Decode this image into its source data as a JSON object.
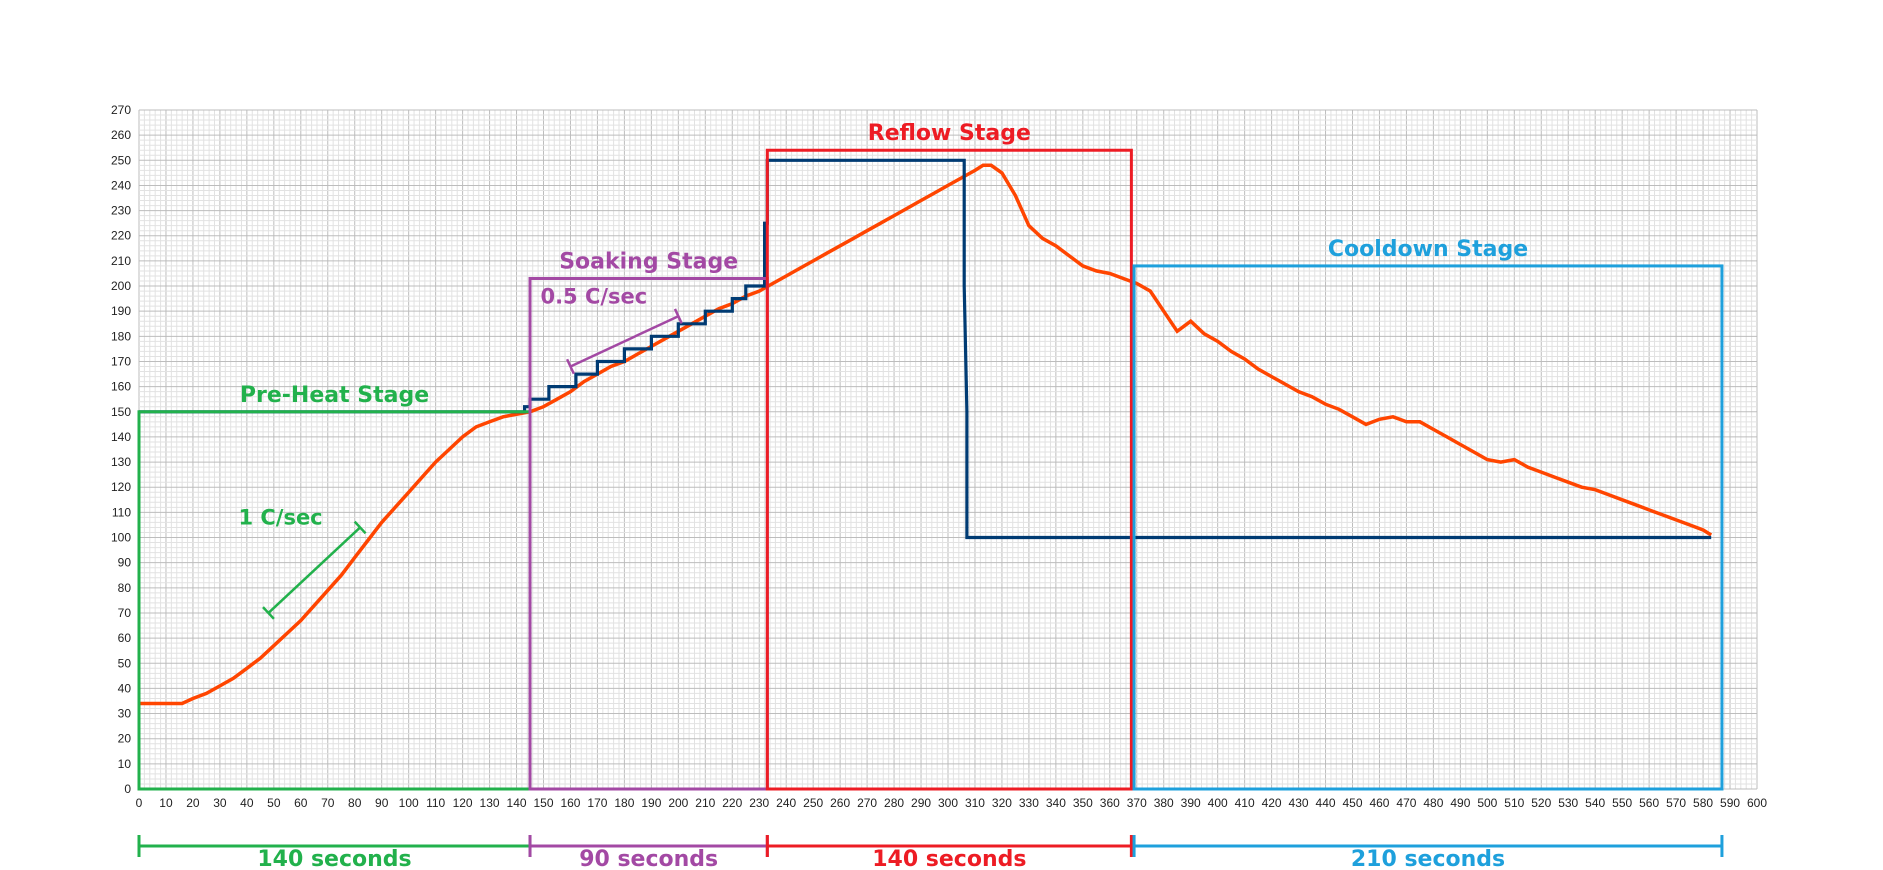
{
  "chart_data": {
    "type": "line",
    "title": "",
    "xlabel": "",
    "ylabel": "",
    "xlim": [
      0,
      600
    ],
    "ylim": [
      0,
      270
    ],
    "x_ticks": [
      "0",
      "10",
      "20",
      "30",
      "40",
      "50",
      "60",
      "70",
      "80",
      "90",
      "100",
      "110",
      "120",
      "130",
      "140",
      "150",
      "160",
      "170",
      "180",
      "190",
      "200",
      "210",
      "220",
      "230",
      "240",
      "250",
      "260",
      "270",
      "280",
      "290",
      "300",
      "310",
      "320",
      "330",
      "340",
      "350",
      "360",
      "370",
      "380",
      "390",
      "400",
      "410",
      "420",
      "430",
      "440",
      "450",
      "460",
      "470",
      "480",
      "490",
      "500",
      "510",
      "520",
      "530",
      "540",
      "550",
      "560",
      "570",
      "580",
      "590",
      "600"
    ],
    "y_ticks": [
      "0",
      "10",
      "20",
      "30",
      "40",
      "50",
      "60",
      "70",
      "80",
      "90",
      "100",
      "110",
      "120",
      "130",
      "140",
      "150",
      "160",
      "170",
      "180",
      "190",
      "200",
      "210",
      "220",
      "230",
      "240",
      "250",
      "260",
      "270"
    ],
    "grid": true,
    "series": [
      {
        "color": "#FF4500",
        "x": [
          0,
          16,
          20,
          25,
          30,
          35,
          40,
          45,
          50,
          55,
          60,
          65,
          70,
          75,
          80,
          85,
          90,
          95,
          100,
          105,
          110,
          115,
          120,
          125,
          130,
          135,
          140,
          145,
          150,
          155,
          160,
          165,
          170,
          175,
          180,
          185,
          190,
          195,
          200,
          205,
          210,
          215,
          220,
          225,
          230,
          235,
          240,
          245,
          250,
          255,
          260,
          265,
          270,
          275,
          280,
          285,
          290,
          295,
          300,
          305,
          310,
          313,
          316,
          320,
          325,
          330,
          335,
          340,
          345,
          350,
          355,
          360,
          365,
          370,
          375,
          380,
          385,
          390,
          395,
          400,
          405,
          410,
          415,
          420,
          425,
          430,
          435,
          440,
          445,
          450,
          455,
          460,
          465,
          470,
          475,
          480,
          485,
          490,
          495,
          500,
          505,
          510,
          515,
          520,
          525,
          530,
          535,
          540,
          545,
          550,
          555,
          560,
          565,
          570,
          575,
          580,
          583
        ],
        "y": [
          34,
          34,
          36,
          38,
          41,
          44,
          48,
          52,
          57,
          62,
          67,
          73,
          79,
          85,
          92,
          99,
          106,
          112,
          118,
          124,
          130,
          135,
          140,
          144,
          146,
          148,
          149,
          150,
          152,
          155,
          158,
          162,
          165,
          168,
          170,
          173,
          176,
          179,
          182,
          185,
          188,
          191,
          193,
          196,
          198,
          201,
          204,
          207,
          210,
          213,
          216,
          219,
          222,
          225,
          228,
          231,
          234,
          237,
          240,
          243,
          246,
          248,
          248,
          245,
          236,
          224,
          219,
          216,
          212,
          208,
          206,
          205,
          203,
          201,
          198,
          190,
          182,
          186,
          181,
          178,
          174,
          171,
          167,
          164,
          161,
          158,
          156,
          153,
          151,
          148,
          145,
          147,
          148,
          146,
          146,
          143,
          140,
          137,
          134,
          131,
          130,
          131,
          128,
          126,
          124,
          122,
          120,
          119,
          117,
          115,
          113,
          111,
          109,
          107,
          105,
          103,
          101
        ]
      },
      {
        "color": "#003B73",
        "x": [
          0,
          143,
          143,
          145,
          145,
          152,
          152,
          162,
          162,
          170,
          170,
          180,
          180,
          190,
          190,
          200,
          200,
          210,
          210,
          220,
          220,
          225,
          225,
          232,
          232,
          233,
          233,
          306,
          306,
          307,
          307,
          583
        ],
        "y": [
          150,
          150,
          152,
          152,
          155,
          155,
          160,
          160,
          165,
          165,
          170,
          170,
          175,
          175,
          180,
          180,
          185,
          185,
          190,
          190,
          195,
          195,
          200,
          200,
          225,
          225,
          250,
          250,
          200,
          150,
          100,
          100
        ]
      }
    ],
    "annotations": {
      "stages": [
        {
          "label": "Pre-Heat Stage",
          "color": "#22B14C",
          "x_range": [
            0,
            145
          ],
          "y_top": 150
        },
        {
          "label": "Soaking Stage",
          "color": "#A349A4",
          "x_range": [
            145,
            233
          ],
          "y_top": 203
        },
        {
          "label": "Reflow Stage",
          "color": "#ED1C24",
          "x_range": [
            233,
            368
          ],
          "y_top": 254
        },
        {
          "label": "Cooldown Stage",
          "color": "#1EA0DC",
          "x_range": [
            369,
            587
          ],
          "y_top": 208
        }
      ],
      "durations": [
        {
          "label": "140 seconds",
          "color": "#22B14C"
        },
        {
          "label": "90 seconds",
          "color": "#A349A4"
        },
        {
          "label": "140 seconds",
          "color": "#ED1C24"
        },
        {
          "label": "210 seconds",
          "color": "#1EA0DC"
        }
      ],
      "rates": [
        {
          "label": "1 C/sec",
          "color": "#22B14C",
          "x_start": 48,
          "y_start": 70,
          "x_end": 82,
          "y_end": 104
        },
        {
          "label": "0.5 C/sec",
          "color": "#A349A4",
          "x_start": 160,
          "y_start": 168,
          "x_end": 200,
          "y_end": 188
        }
      ]
    }
  }
}
